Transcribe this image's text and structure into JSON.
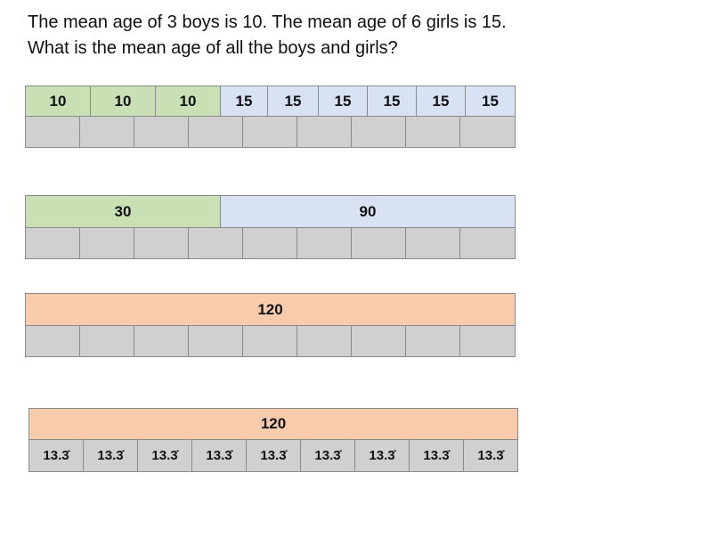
{
  "question": "The mean age of 3 boys is 10. The mean age of 6 girls is 15. What is the mean age of all the boys and girls?",
  "row1_values": [
    "10",
    "10",
    "10",
    "15",
    "15",
    "15",
    "15",
    "15",
    "15"
  ],
  "row2_values": [
    "30",
    "90"
  ],
  "row3_value": "120",
  "row4_value": "120",
  "row4_cells": [
    "13.3̇",
    "13.3̇",
    "13.3̇",
    "13.3̇",
    "13.3̇",
    "13.3̇",
    "13.3̇",
    "13.3̇",
    "13.3̇"
  ],
  "colors": {
    "boys": "#c8e0b4",
    "girls": "#d9e2f3",
    "total": "#f8cbad",
    "empty": "#d0d0d0"
  }
}
